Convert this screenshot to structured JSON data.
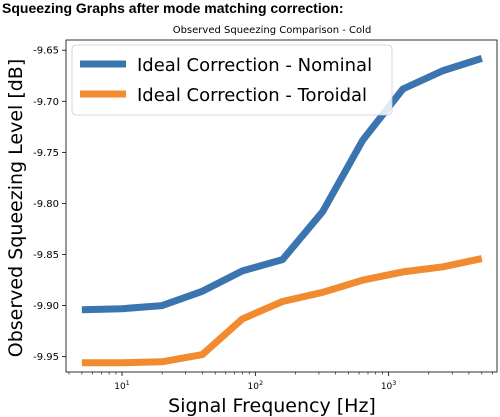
{
  "heading": "Squeezing Graphs after mode matching correction:",
  "chart_data": {
    "type": "line",
    "title": "Observed Squeezing Comparison - Cold",
    "xlabel": "Signal Frequency [Hz]",
    "ylabel": "Observed Squeezing Level [dB]",
    "xscale": "log",
    "xlim": [
      3.8,
      6500
    ],
    "ylim": [
      -9.965,
      -9.64
    ],
    "xticks": [
      {
        "value": 10,
        "base": "10",
        "exp": "1"
      },
      {
        "value": 100,
        "base": "10",
        "exp": "2"
      },
      {
        "value": 1000,
        "base": "10",
        "exp": "3"
      }
    ],
    "yticks": [
      {
        "value": -9.95,
        "label": "-9.95"
      },
      {
        "value": -9.9,
        "label": "-9.90"
      },
      {
        "value": -9.85,
        "label": "-9.85"
      },
      {
        "value": -9.8,
        "label": "-9.80"
      },
      {
        "value": -9.75,
        "label": "-9.75"
      },
      {
        "value": -9.7,
        "label": "-9.70"
      },
      {
        "value": -9.65,
        "label": "-9.65"
      }
    ],
    "grid": false,
    "legend": "top-left",
    "x": [
      5,
      10,
      20,
      40,
      80,
      160,
      320,
      640,
      1280,
      2560,
      5000
    ],
    "series": [
      {
        "name": "Ideal Correction - Nominal",
        "color": "#3a75b0",
        "values": [
          -9.904,
          -9.903,
          -9.9,
          -9.886,
          -9.866,
          -9.855,
          -9.808,
          -9.738,
          -9.688,
          -9.67,
          -9.658
        ]
      },
      {
        "name": "Ideal Correction - Toroidal",
        "color": "#f28a30",
        "values": [
          -9.956,
          -9.956,
          -9.955,
          -9.948,
          -9.913,
          -9.896,
          -9.887,
          -9.875,
          -9.867,
          -9.862,
          -9.854
        ]
      }
    ]
  }
}
